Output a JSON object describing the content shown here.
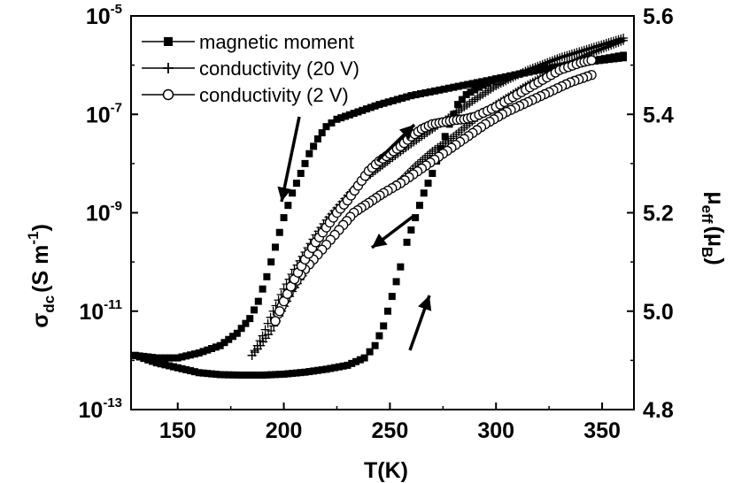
{
  "chart_data": {
    "type": "scatter",
    "xlabel": "T(K)",
    "ylabel_left": {
      "main": "σ",
      "sub": "dc",
      "units": "(S m",
      "sup": "-1",
      "close": ")"
    },
    "ylabel_right": {
      "main": "μ",
      "sub": "eff",
      "units": "(μ",
      "units_sub": "B",
      "close": ")"
    },
    "xlim": [
      128,
      365
    ],
    "ylim_left_exp": [
      -13,
      -5
    ],
    "ylim_right": [
      4.8,
      5.6
    ],
    "x_ticks": [
      {
        "value": 150,
        "label": "150"
      },
      {
        "value": 200,
        "label": "200"
      },
      {
        "value": 250,
        "label": "250"
      },
      {
        "value": 300,
        "label": "300"
      },
      {
        "value": 350,
        "label": "350"
      }
    ],
    "y_left_ticks": [
      {
        "exp": -13,
        "base": "10",
        "sup": "-13"
      },
      {
        "exp": -11,
        "base": "10",
        "sup": "-11"
      },
      {
        "exp": -9,
        "base": "10",
        "sup": "-9"
      },
      {
        "exp": -7,
        "base": "10",
        "sup": "-7"
      },
      {
        "exp": -5,
        "base": "10",
        "sup": "-5"
      }
    ],
    "y_right_ticks": [
      {
        "value": 4.8,
        "label": "4.8"
      },
      {
        "value": 5.0,
        "label": "5.0"
      },
      {
        "value": 5.2,
        "label": "5.2"
      },
      {
        "value": 5.4,
        "label": "5.4"
      },
      {
        "value": 5.6,
        "label": "5.6"
      }
    ],
    "legend_position": "top-left",
    "series": [
      {
        "name": "magnetic moment",
        "marker": "square",
        "axis": "right",
        "cooling": [
          [
            360,
            5.515
          ],
          [
            340,
            5.505
          ],
          [
            320,
            5.49
          ],
          [
            300,
            5.472
          ],
          [
            280,
            5.455
          ],
          [
            260,
            5.438
          ],
          [
            245,
            5.42
          ],
          [
            235,
            5.405
          ],
          [
            225,
            5.39
          ],
          [
            220,
            5.375
          ],
          [
            216,
            5.35
          ],
          [
            212,
            5.32
          ],
          [
            208,
            5.28
          ],
          [
            204,
            5.24
          ],
          [
            200,
            5.19
          ],
          [
            196,
            5.13
          ],
          [
            192,
            5.07
          ],
          [
            188,
            5.02
          ],
          [
            184,
            4.985
          ],
          [
            178,
            4.955
          ],
          [
            170,
            4.93
          ],
          [
            160,
            4.915
          ],
          [
            150,
            4.905
          ],
          [
            140,
            4.905
          ],
          [
            130,
            4.91
          ]
        ],
        "heating": [
          [
            130,
            4.91
          ],
          [
            140,
            4.895
          ],
          [
            150,
            4.885
          ],
          [
            160,
            4.875
          ],
          [
            170,
            4.871
          ],
          [
            180,
            4.87
          ],
          [
            190,
            4.87
          ],
          [
            200,
            4.872
          ],
          [
            210,
            4.876
          ],
          [
            220,
            4.882
          ],
          [
            230,
            4.89
          ],
          [
            238,
            4.905
          ],
          [
            243,
            4.93
          ],
          [
            247,
            4.97
          ],
          [
            251,
            5.03
          ],
          [
            255,
            5.09
          ],
          [
            258,
            5.14
          ],
          [
            262,
            5.19
          ],
          [
            266,
            5.24
          ],
          [
            270,
            5.28
          ],
          [
            274,
            5.33
          ],
          [
            278,
            5.38
          ],
          [
            282,
            5.42
          ],
          [
            286,
            5.44
          ],
          [
            292,
            5.455
          ],
          [
            300,
            5.472
          ],
          [
            320,
            5.49
          ],
          [
            340,
            5.505
          ],
          [
            360,
            5.52
          ]
        ]
      },
      {
        "name": "conductivity (20 V)",
        "marker": "plus",
        "axis": "left",
        "cooling": [
          [
            360,
            -5.5
          ],
          [
            345,
            -5.75
          ],
          [
            330,
            -6.05
          ],
          [
            315,
            -6.4
          ],
          [
            300,
            -6.8
          ],
          [
            290,
            -7.1
          ],
          [
            280,
            -7.45
          ],
          [
            270,
            -7.75
          ],
          [
            262,
            -8.05
          ],
          [
            255,
            -8.35
          ],
          [
            248,
            -8.6
          ],
          [
            240,
            -8.8
          ],
          [
            233,
            -9.0
          ],
          [
            228,
            -9.2
          ],
          [
            222,
            -9.55
          ],
          [
            216,
            -9.85
          ],
          [
            210,
            -10.2
          ],
          [
            204,
            -10.6
          ],
          [
            199,
            -11.0
          ],
          [
            194,
            -11.4
          ],
          [
            189,
            -11.7
          ],
          [
            185,
            -11.9
          ]
        ],
        "heating": [
          [
            185,
            -11.9
          ],
          [
            190,
            -11.5
          ],
          [
            195,
            -11.0
          ],
          [
            200,
            -10.55
          ],
          [
            205,
            -10.15
          ],
          [
            210,
            -9.8
          ],
          [
            215,
            -9.45
          ],
          [
            220,
            -9.15
          ],
          [
            225,
            -8.9
          ],
          [
            230,
            -8.65
          ],
          [
            235,
            -8.42
          ],
          [
            242,
            -8.18
          ],
          [
            250,
            -7.92
          ],
          [
            260,
            -7.6
          ],
          [
            270,
            -7.3
          ],
          [
            280,
            -7.0
          ],
          [
            290,
            -6.7
          ],
          [
            300,
            -6.42
          ],
          [
            315,
            -6.1
          ],
          [
            330,
            -5.85
          ],
          [
            345,
            -5.65
          ],
          [
            360,
            -5.45
          ]
        ]
      },
      {
        "name": "conductivity (2 V)",
        "marker": "circle",
        "axis": "left",
        "cooling": [
          [
            345,
            -6.2
          ],
          [
            335,
            -6.35
          ],
          [
            325,
            -6.55
          ],
          [
            315,
            -6.75
          ],
          [
            305,
            -6.95
          ],
          [
            295,
            -7.2
          ],
          [
            285,
            -7.5
          ],
          [
            275,
            -7.8
          ],
          [
            265,
            -8.1
          ],
          [
            255,
            -8.4
          ],
          [
            247,
            -8.6
          ],
          [
            240,
            -8.8
          ],
          [
            233,
            -9.0
          ],
          [
            228,
            -9.25
          ],
          [
            222,
            -9.55
          ],
          [
            216,
            -9.85
          ],
          [
            210,
            -10.15
          ],
          [
            204,
            -10.5
          ],
          [
            199,
            -10.9
          ],
          [
            196,
            -11.2
          ]
        ],
        "heating": [
          [
            196,
            -11.2
          ],
          [
            200,
            -10.8
          ],
          [
            205,
            -10.35
          ],
          [
            210,
            -9.95
          ],
          [
            215,
            -9.6
          ],
          [
            220,
            -9.3
          ],
          [
            225,
            -9.0
          ],
          [
            230,
            -8.75
          ],
          [
            235,
            -8.45
          ],
          [
            240,
            -8.15
          ],
          [
            245,
            -7.95
          ],
          [
            250,
            -7.8
          ],
          [
            255,
            -7.65
          ],
          [
            260,
            -7.45
          ],
          [
            265,
            -7.3
          ],
          [
            270,
            -7.2
          ],
          [
            275,
            -7.16
          ],
          [
            280,
            -7.12
          ],
          [
            285,
            -7.1
          ],
          [
            290,
            -7.05
          ],
          [
            300,
            -6.85
          ],
          [
            310,
            -6.6
          ],
          [
            320,
            -6.35
          ],
          [
            330,
            -6.1
          ],
          [
            340,
            -5.95
          ],
          [
            345,
            -5.9
          ]
        ]
      }
    ]
  }
}
